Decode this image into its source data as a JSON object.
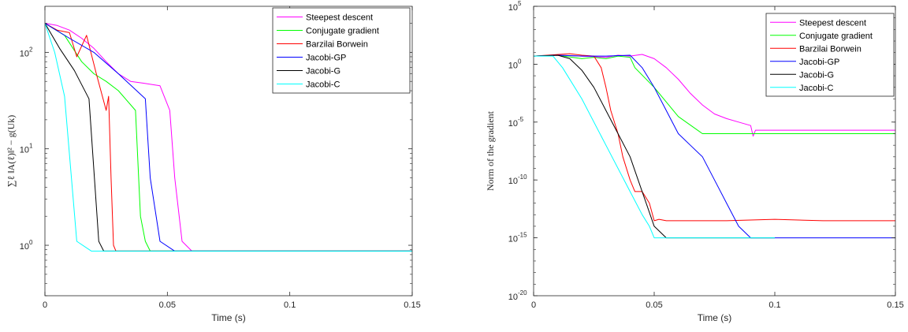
{
  "chart_data": [
    {
      "type": "line",
      "xlabel": "Time (s)",
      "ylabel": "∑ℓ ‖A(ℓ)‖² − g(Uk)",
      "xlim": [
        0,
        0.15
      ],
      "ylim": [
        0.3,
        300
      ],
      "yscale": "log",
      "xticks": [
        0,
        0.05,
        0.1,
        0.15
      ],
      "xtick_labels": [
        "0",
        "0.05",
        "0.1",
        "0.15"
      ],
      "yticks": [
        1,
        10,
        100
      ],
      "ytick_labels": [
        "10",
        "10",
        "10"
      ],
      "ytick_exponents": [
        "0",
        "1",
        "2"
      ],
      "grid": false,
      "legend_position": "top-right",
      "series": [
        {
          "name": "Steepest descent",
          "color": "#ff00ff",
          "x": [
            0,
            0.005,
            0.01,
            0.015,
            0.02,
            0.025,
            0.03,
            0.035,
            0.04,
            0.047,
            0.051,
            0.053,
            0.056,
            0.06,
            0.15
          ],
          "y": [
            200,
            190,
            170,
            140,
            110,
            80,
            60,
            50,
            48,
            45,
            25,
            5,
            1.1,
            0.87,
            0.87
          ]
        },
        {
          "name": "Conjugate gradient",
          "color": "#00ff00",
          "x": [
            0,
            0.008,
            0.015,
            0.02,
            0.025,
            0.03,
            0.037,
            0.039,
            0.041,
            0.043,
            0.15
          ],
          "y": [
            200,
            150,
            80,
            60,
            50,
            40,
            25,
            2,
            1.1,
            0.87,
            0.87
          ]
        },
        {
          "name": "Barzilai Borwein",
          "color": "#ff0000",
          "x": [
            0,
            0.005,
            0.01,
            0.013,
            0.017,
            0.021,
            0.025,
            0.026,
            0.027,
            0.028,
            0.029,
            0.15
          ],
          "y": [
            200,
            170,
            160,
            90,
            150,
            60,
            25,
            35,
            5,
            1,
            0.87,
            0.87
          ]
        },
        {
          "name": "Jacobi-GP",
          "color": "#0000ff",
          "x": [
            0,
            0.01,
            0.02,
            0.03,
            0.041,
            0.043,
            0.047,
            0.053,
            0.15
          ],
          "y": [
            200,
            140,
            100,
            60,
            33,
            5,
            1.1,
            0.87,
            0.87
          ]
        },
        {
          "name": "Jacobi-G",
          "color": "#000000",
          "x": [
            0,
            0.006,
            0.012,
            0.018,
            0.022,
            0.024,
            0.027,
            0.15
          ],
          "y": [
            200,
            110,
            65,
            33,
            1.1,
            0.87,
            0.87,
            0.87
          ]
        },
        {
          "name": "Jacobi-C",
          "color": "#00ffff",
          "x": [
            0,
            0.004,
            0.008,
            0.013,
            0.019,
            0.15
          ],
          "y": [
            200,
            100,
            35,
            1.1,
            0.87,
            0.87
          ]
        }
      ]
    },
    {
      "type": "line",
      "xlabel": "Time (s)",
      "ylabel": "Norm of the gradient",
      "xlim": [
        0,
        0.15
      ],
      "ylim": [
        1e-20,
        100000.0
      ],
      "yscale": "log",
      "xticks": [
        0,
        0.05,
        0.1,
        0.15
      ],
      "xtick_labels": [
        "0",
        "0.05",
        "0.1",
        "0.15"
      ],
      "yticks": [
        1e-20,
        1e-15,
        1e-10,
        1e-05,
        1,
        100000.0
      ],
      "ytick_labels": [
        "10",
        "10",
        "10",
        "10",
        "10",
        "10"
      ],
      "ytick_exponents": [
        "-20",
        "-15",
        "-10",
        "-5",
        "0",
        "5"
      ],
      "grid": false,
      "legend_position": "top-right",
      "series": [
        {
          "name": "Steepest descent",
          "color": "#ff00ff",
          "x": [
            0,
            0.01,
            0.02,
            0.03,
            0.035,
            0.04,
            0.045,
            0.05,
            0.055,
            0.06,
            0.065,
            0.07,
            0.075,
            0.08,
            0.085,
            0.09,
            0.091,
            0.092,
            0.1,
            0.15
          ],
          "y": [
            5,
            6,
            5,
            4,
            6,
            5,
            7,
            3,
            0.5,
            0.05,
            0.003,
            0.0003,
            5e-05,
            2e-05,
            1e-05,
            5e-06,
            6e-07,
            2e-06,
            2e-06,
            2e-06
          ]
        },
        {
          "name": "Conjugate gradient",
          "color": "#00ff00",
          "x": [
            0,
            0.01,
            0.02,
            0.025,
            0.03,
            0.035,
            0.04,
            0.042,
            0.05,
            0.06,
            0.07,
            0.15
          ],
          "y": [
            5,
            6,
            3,
            4,
            3,
            5,
            4,
            0.5,
            0.01,
            3e-05,
            1e-06,
            1e-06
          ]
        },
        {
          "name": "Barzilai Borwein",
          "color": "#ff0000",
          "x": [
            0,
            0.015,
            0.02,
            0.025,
            0.028,
            0.03,
            0.032,
            0.035,
            0.037,
            0.04,
            0.042,
            0.045,
            0.048,
            0.05,
            0.052,
            0.055,
            0.08,
            0.1,
            0.12,
            0.15
          ],
          "y": [
            5,
            8,
            6,
            5,
            0.5,
            0.01,
            0.0001,
            1e-06,
            1e-08,
            1e-10,
            1e-11,
            1e-11,
            1e-12,
            3e-14,
            4e-14,
            3e-14,
            3e-14,
            4e-14,
            3e-14,
            3e-14
          ]
        },
        {
          "name": "Jacobi-GP",
          "color": "#0000ff",
          "x": [
            0,
            0.01,
            0.02,
            0.03,
            0.04,
            0.045,
            0.05,
            0.055,
            0.06,
            0.065,
            0.07,
            0.075,
            0.08,
            0.085,
            0.09,
            0.1,
            0.15
          ],
          "y": [
            5,
            6,
            5,
            5,
            6,
            0.5,
            0.01,
            0.0001,
            1e-06,
            1e-07,
            1e-08,
            1e-10,
            1e-12,
            1e-14,
            1e-15,
            1e-15,
            1e-15
          ]
        },
        {
          "name": "Jacobi-G",
          "color": "#000000",
          "x": [
            0,
            0.01,
            0.015,
            0.02,
            0.025,
            0.03,
            0.035,
            0.04,
            0.045,
            0.05,
            0.055,
            0.1
          ],
          "y": [
            5,
            6,
            3,
            0.3,
            0.01,
            0.0001,
            1e-06,
            1e-08,
            1e-11,
            1e-14,
            1e-15,
            1e-15
          ]
        },
        {
          "name": "Jacobi-C",
          "color": "#00ffff",
          "x": [
            0,
            0.008,
            0.012,
            0.02,
            0.03,
            0.04,
            0.045,
            0.048,
            0.05,
            0.1
          ],
          "y": [
            5,
            5,
            0.5,
            0.001,
            1e-07,
            1e-11,
            1e-13,
            1e-14,
            1e-15,
            1e-15
          ]
        }
      ]
    }
  ]
}
